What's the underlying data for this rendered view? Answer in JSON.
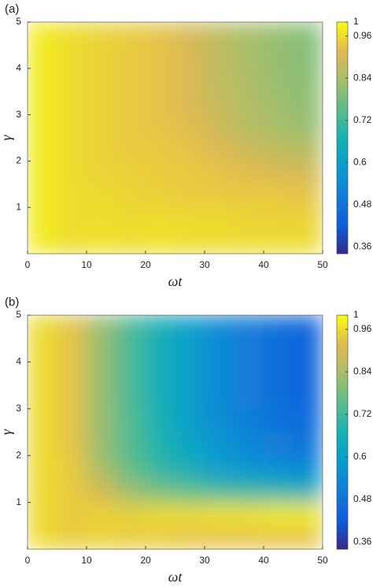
{
  "chart_data": [
    {
      "type": "heatmap",
      "label": "(a)",
      "xlabel": "ωt",
      "ylabel": "γ",
      "colormap": "parula",
      "xlim": [
        0,
        50
      ],
      "ylim": [
        0,
        5
      ],
      "xticks": [
        0,
        10,
        20,
        30,
        40,
        50
      ],
      "yticks": [
        1,
        2,
        3,
        4,
        5
      ],
      "x": [
        2.5,
        7.5,
        12.5,
        17.5,
        22.5,
        27.5,
        32.5,
        37.5,
        42.5,
        47.5
      ],
      "y": [
        0.25,
        0.75,
        1.25,
        1.75,
        2.25,
        2.75,
        3.25,
        3.75,
        4.25,
        4.75
      ],
      "values": [
        [
          0.98,
          0.96,
          0.97,
          0.96,
          0.97,
          0.96,
          0.96,
          0.96,
          0.96,
          0.96
        ],
        [
          0.98,
          0.96,
          0.96,
          0.96,
          0.96,
          0.96,
          0.96,
          0.95,
          0.95,
          0.95
        ],
        [
          0.98,
          0.96,
          0.96,
          0.95,
          0.95,
          0.94,
          0.94,
          0.94,
          0.94,
          0.93
        ],
        [
          0.98,
          0.96,
          0.95,
          0.95,
          0.94,
          0.94,
          0.93,
          0.92,
          0.91,
          0.9
        ],
        [
          0.98,
          0.96,
          0.95,
          0.94,
          0.94,
          0.93,
          0.91,
          0.89,
          0.87,
          0.86
        ],
        [
          0.98,
          0.96,
          0.95,
          0.94,
          0.93,
          0.92,
          0.89,
          0.86,
          0.84,
          0.82
        ],
        [
          0.98,
          0.96,
          0.95,
          0.94,
          0.93,
          0.91,
          0.88,
          0.85,
          0.83,
          0.81
        ],
        [
          0.98,
          0.96,
          0.95,
          0.94,
          0.93,
          0.91,
          0.87,
          0.85,
          0.82,
          0.81
        ],
        [
          0.98,
          0.96,
          0.95,
          0.94,
          0.93,
          0.91,
          0.87,
          0.84,
          0.82,
          0.8
        ],
        [
          0.98,
          0.96,
          0.95,
          0.94,
          0.93,
          0.9,
          0.87,
          0.84,
          0.82,
          0.8
        ]
      ],
      "clim": [
        0.34,
        1
      ],
      "cticks": [
        0.36,
        0.48,
        0.6,
        0.72,
        0.84,
        0.96,
        1
      ]
    },
    {
      "type": "heatmap",
      "label": "(b)",
      "xlabel": "ωt",
      "ylabel": "γ",
      "colormap": "parula",
      "xlim": [
        0,
        50
      ],
      "ylim": [
        0,
        5
      ],
      "xticks": [
        0,
        10,
        20,
        30,
        40,
        50
      ],
      "yticks": [
        1,
        2,
        3,
        4,
        5
      ],
      "x": [
        2.5,
        7.5,
        12.5,
        17.5,
        22.5,
        27.5,
        32.5,
        37.5,
        42.5,
        47.5
      ],
      "y": [
        0.25,
        0.75,
        1.25,
        1.75,
        2.25,
        2.75,
        3.25,
        3.75,
        4.25,
        4.75
      ],
      "values": [
        [
          0.96,
          0.94,
          0.95,
          0.94,
          0.94,
          0.93,
          0.93,
          0.93,
          0.93,
          0.93
        ],
        [
          0.96,
          0.94,
          0.95,
          0.95,
          0.96,
          0.96,
          0.97,
          0.97,
          0.98,
          0.98
        ],
        [
          0.96,
          0.94,
          0.9,
          0.82,
          0.78,
          0.75,
          0.72,
          0.7,
          0.68,
          0.66
        ],
        [
          0.96,
          0.94,
          0.84,
          0.76,
          0.7,
          0.65,
          0.6,
          0.57,
          0.55,
          0.53
        ],
        [
          0.96,
          0.93,
          0.82,
          0.74,
          0.68,
          0.62,
          0.57,
          0.53,
          0.5,
          0.48
        ],
        [
          0.96,
          0.93,
          0.82,
          0.74,
          0.67,
          0.6,
          0.55,
          0.51,
          0.48,
          0.46
        ],
        [
          0.96,
          0.93,
          0.82,
          0.73,
          0.66,
          0.6,
          0.54,
          0.5,
          0.47,
          0.44
        ],
        [
          0.96,
          0.93,
          0.82,
          0.73,
          0.66,
          0.6,
          0.54,
          0.5,
          0.47,
          0.44
        ],
        [
          0.96,
          0.93,
          0.82,
          0.73,
          0.66,
          0.6,
          0.54,
          0.5,
          0.47,
          0.44
        ],
        [
          0.96,
          0.93,
          0.82,
          0.73,
          0.66,
          0.6,
          0.54,
          0.5,
          0.47,
          0.44
        ]
      ],
      "clim": [
        0.34,
        1
      ],
      "cticks": [
        0.36,
        0.48,
        0.6,
        0.72,
        0.84,
        0.96,
        1
      ]
    }
  ]
}
